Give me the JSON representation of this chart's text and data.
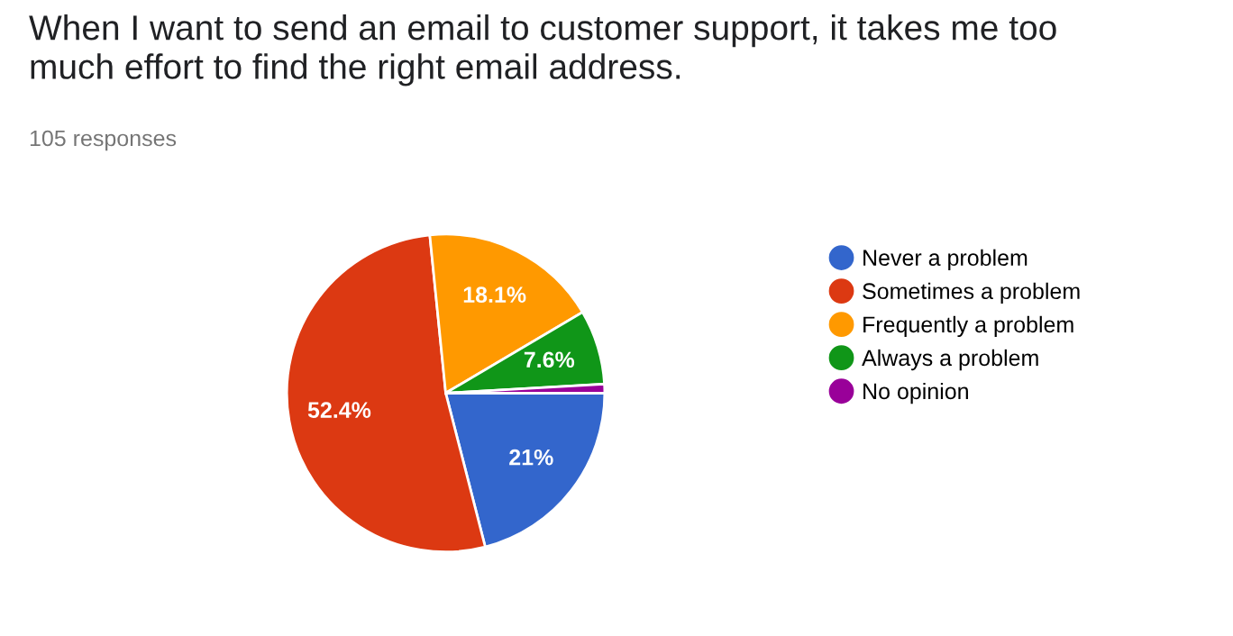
{
  "chart_data": {
    "type": "pie",
    "title": "When I want to send an email to customer support, it takes me too\nmuch effort to find the right email address.",
    "subtitle": "105 responses",
    "categories": [
      "Never a problem",
      "Sometimes a problem",
      "Frequently a problem",
      "Always a problem",
      "No opinion"
    ],
    "values": [
      21,
      52.4,
      18.1,
      7.6,
      0.9
    ],
    "colors": [
      "#3366cc",
      "#dc3912",
      "#ff9900",
      "#109618",
      "#990099"
    ],
    "value_labels": [
      "21%",
      "52.4%",
      "18.1%",
      "7.6%",
      null
    ],
    "legend": "right"
  }
}
